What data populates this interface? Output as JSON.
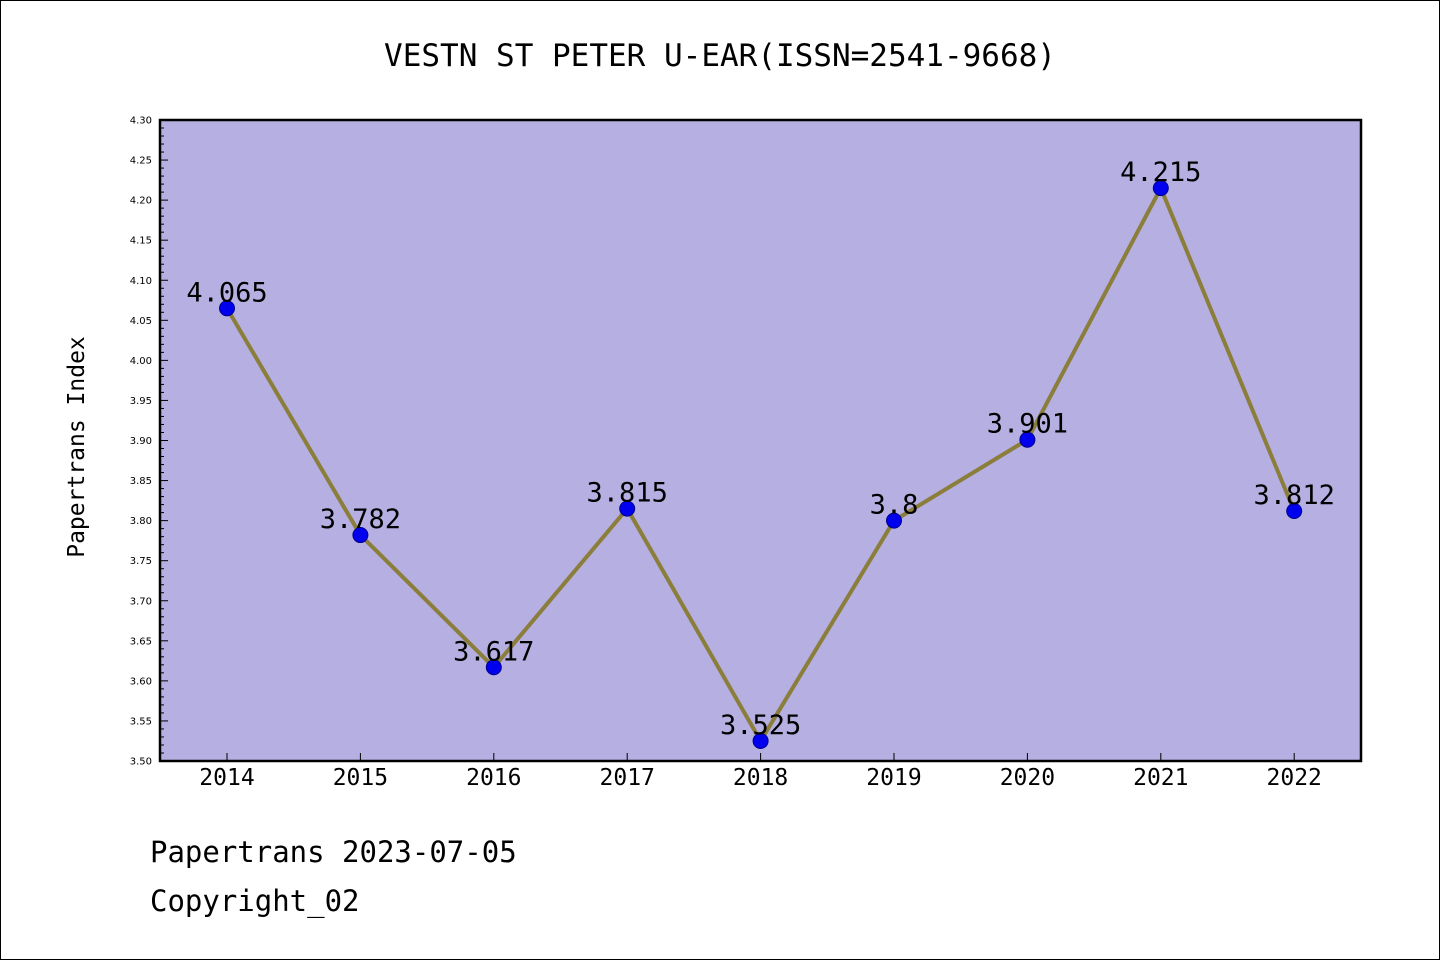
{
  "footer": {
    "line1": "Papertrans 2023-07-05",
    "line2": "Copyright_02"
  },
  "colors": {
    "plot_background": "#b5afe2",
    "line": "#8b7d3a",
    "marker": "#0000ee",
    "marker_edge": "#00008b",
    "axis": "#000000"
  },
  "chart_data": {
    "type": "line",
    "title": "VESTN ST PETER U-EAR(ISSN=2541-9668)",
    "xlabel": "",
    "ylabel": "Papertrans Index",
    "x": [
      "2014",
      "2015",
      "2016",
      "2017",
      "2018",
      "2019",
      "2020",
      "2021",
      "2022"
    ],
    "series": [
      {
        "values": [
          4.065,
          3.782,
          3.617,
          3.815,
          3.525,
          3.8,
          3.901,
          4.215,
          3.812
        ],
        "labels": [
          "4.065",
          "3.782",
          "3.617",
          "3.815",
          "3.525",
          "3.8",
          "3.901",
          "4.215",
          "3.812"
        ]
      }
    ],
    "ylim": [
      3.5,
      4.3
    ],
    "yticks": [
      "3.50",
      "3.55",
      "3.60",
      "3.65",
      "3.70",
      "3.75",
      "3.80",
      "3.85",
      "3.90",
      "3.95",
      "4.00",
      "4.05",
      "4.10",
      "4.15",
      "4.20",
      "4.25",
      "4.30"
    ],
    "grid": false,
    "legend": "none"
  }
}
